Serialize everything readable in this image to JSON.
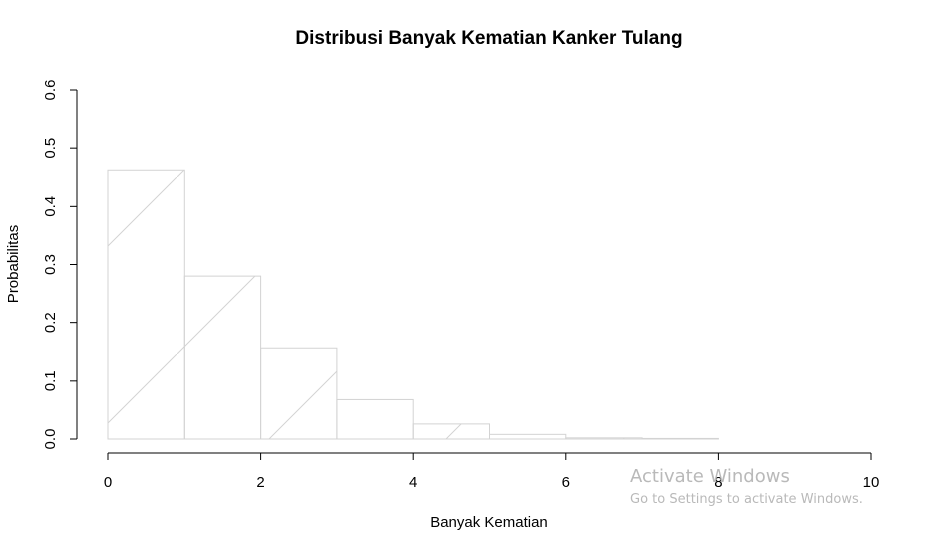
{
  "chart_data": {
    "type": "bar",
    "title": "Distribusi Banyak Kematian Kanker Tulang",
    "xlabel": "Banyak Kematian",
    "ylabel": "Probabilitas",
    "bins": [
      {
        "x0": 0,
        "x1": 1,
        "value": 0.462
      },
      {
        "x0": 1,
        "x1": 2,
        "value": 0.28
      },
      {
        "x0": 2,
        "x1": 3,
        "value": 0.156
      },
      {
        "x0": 3,
        "x1": 4,
        "value": 0.068
      },
      {
        "x0": 4,
        "x1": 5,
        "value": 0.026
      },
      {
        "x0": 5,
        "x1": 6,
        "value": 0.008
      },
      {
        "x0": 6,
        "x1": 7,
        "value": 0.002
      },
      {
        "x0": 7,
        "x1": 8,
        "value": 0.001
      }
    ],
    "xlim": [
      0,
      10
    ],
    "ylim": [
      0,
      0.6
    ],
    "xticks": [
      "0",
      "2",
      "4",
      "6",
      "8",
      "10"
    ],
    "yticks": [
      "0.0",
      "0.1",
      "0.2",
      "0.3",
      "0.4",
      "0.5",
      "0.6"
    ],
    "fill_pattern": "diagonal hatch lines",
    "bar_color": "#d3d3d3",
    "grid": false
  },
  "watermark": {
    "line1": "Activate Windows",
    "line2": "Go to Settings to activate Windows."
  }
}
